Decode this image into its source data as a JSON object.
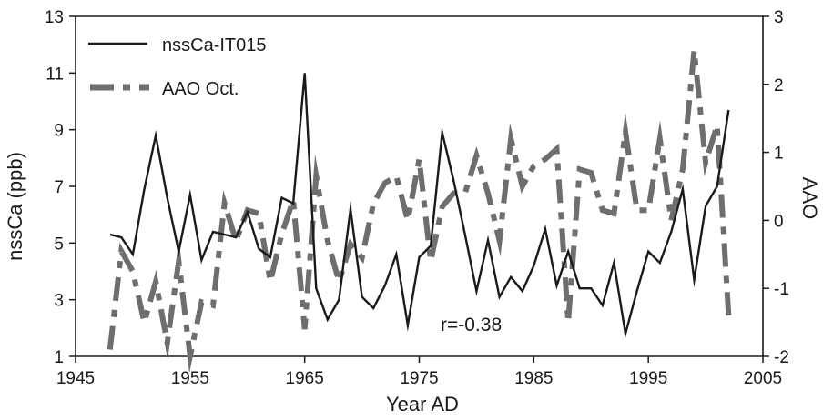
{
  "chart_data": {
    "type": "line",
    "xlabel": "Year AD",
    "ylabel_left": "nssCa (ppb)",
    "ylabel_right": "AAO",
    "xlim": [
      1945,
      2005
    ],
    "ylim_left": [
      1,
      13
    ],
    "ylim_right": [
      -2,
      3
    ],
    "x_ticks": [
      "1945",
      "1955",
      "1965",
      "1975",
      "1985",
      "1995",
      "2005"
    ],
    "y_left_ticks": [
      "1",
      "3",
      "5",
      "7",
      "9",
      "11",
      "13"
    ],
    "y_right_ticks": [
      "-2",
      "-1",
      "0",
      "1",
      "2",
      "3"
    ],
    "annotation": "r=-0.38",
    "legend_position": "top-left",
    "grid": false,
    "colors": {
      "nssCa": "#1a1a1a",
      "AAO": "#6e6e6e"
    },
    "series": [
      {
        "name": "nssCa-IT015",
        "axis": "left",
        "style": "solid",
        "x": [
          1948,
          1949,
          1950,
          1951,
          1952,
          1953,
          1954,
          1955,
          1956,
          1957,
          1958,
          1959,
          1960,
          1961,
          1962,
          1963,
          1964,
          1965,
          1966,
          1967,
          1968,
          1969,
          1970,
          1971,
          1972,
          1973,
          1974,
          1975,
          1976,
          1977,
          1978,
          1979,
          1980,
          1981,
          1982,
          1983,
          1984,
          1985,
          1986,
          1987,
          1988,
          1989,
          1990,
          1991,
          1992,
          1993,
          1994,
          1995,
          1996,
          1997,
          1998,
          1999,
          2000,
          2001,
          2002
        ],
        "values": [
          5.3,
          5.2,
          4.6,
          6.9,
          8.8,
          6.6,
          4.7,
          6.7,
          4.4,
          5.4,
          5.3,
          5.2,
          6.1,
          4.8,
          4.5,
          6.6,
          6.4,
          11.0,
          3.4,
          2.3,
          3.0,
          6.2,
          3.1,
          2.7,
          3.5,
          4.6,
          2.1,
          4.5,
          4.9,
          8.9,
          7.2,
          5.3,
          3.3,
          5.1,
          3.1,
          3.8,
          3.3,
          4.2,
          5.5,
          3.5,
          4.7,
          3.4,
          3.4,
          2.8,
          4.3,
          1.8,
          3.3,
          4.7,
          4.3,
          5.4,
          6.9,
          3.7,
          6.3,
          7.0,
          9.7
        ]
      },
      {
        "name": "AAO Oct.",
        "axis": "right",
        "style": "dashed",
        "x": [
          1948,
          1949,
          1950,
          1951,
          1952,
          1953,
          1954,
          1955,
          1956,
          1957,
          1958,
          1959,
          1960,
          1961,
          1962,
          1963,
          1964,
          1965,
          1966,
          1967,
          1968,
          1969,
          1970,
          1971,
          1972,
          1973,
          1974,
          1975,
          1976,
          1977,
          1978,
          1979,
          1980,
          1981,
          1982,
          1983,
          1984,
          1985,
          1986,
          1987,
          1988,
          1989,
          1990,
          1991,
          1992,
          1993,
          1994,
          1995,
          1996,
          1997,
          1998,
          1999,
          2000,
          2001,
          2002
        ],
        "values": [
          -1.9,
          -0.45,
          -0.75,
          -1.5,
          -0.9,
          -1.8,
          -0.6,
          -2.0,
          -1.2,
          -1.25,
          0.25,
          -0.3,
          0.15,
          0.1,
          -0.9,
          -0.2,
          0.3,
          -1.6,
          0.65,
          -0.3,
          -0.9,
          -0.35,
          -0.55,
          0.25,
          0.55,
          0.65,
          0.0,
          0.9,
          -0.6,
          0.2,
          0.4,
          0.4,
          0.95,
          0.4,
          -0.3,
          1.2,
          0.5,
          0.8,
          0.9,
          1.05,
          -1.5,
          0.75,
          0.7,
          0.15,
          0.1,
          1.3,
          0.15,
          0.15,
          1.2,
          0.0,
          0.75,
          2.5,
          0.85,
          1.4,
          -1.4
        ]
      }
    ]
  }
}
